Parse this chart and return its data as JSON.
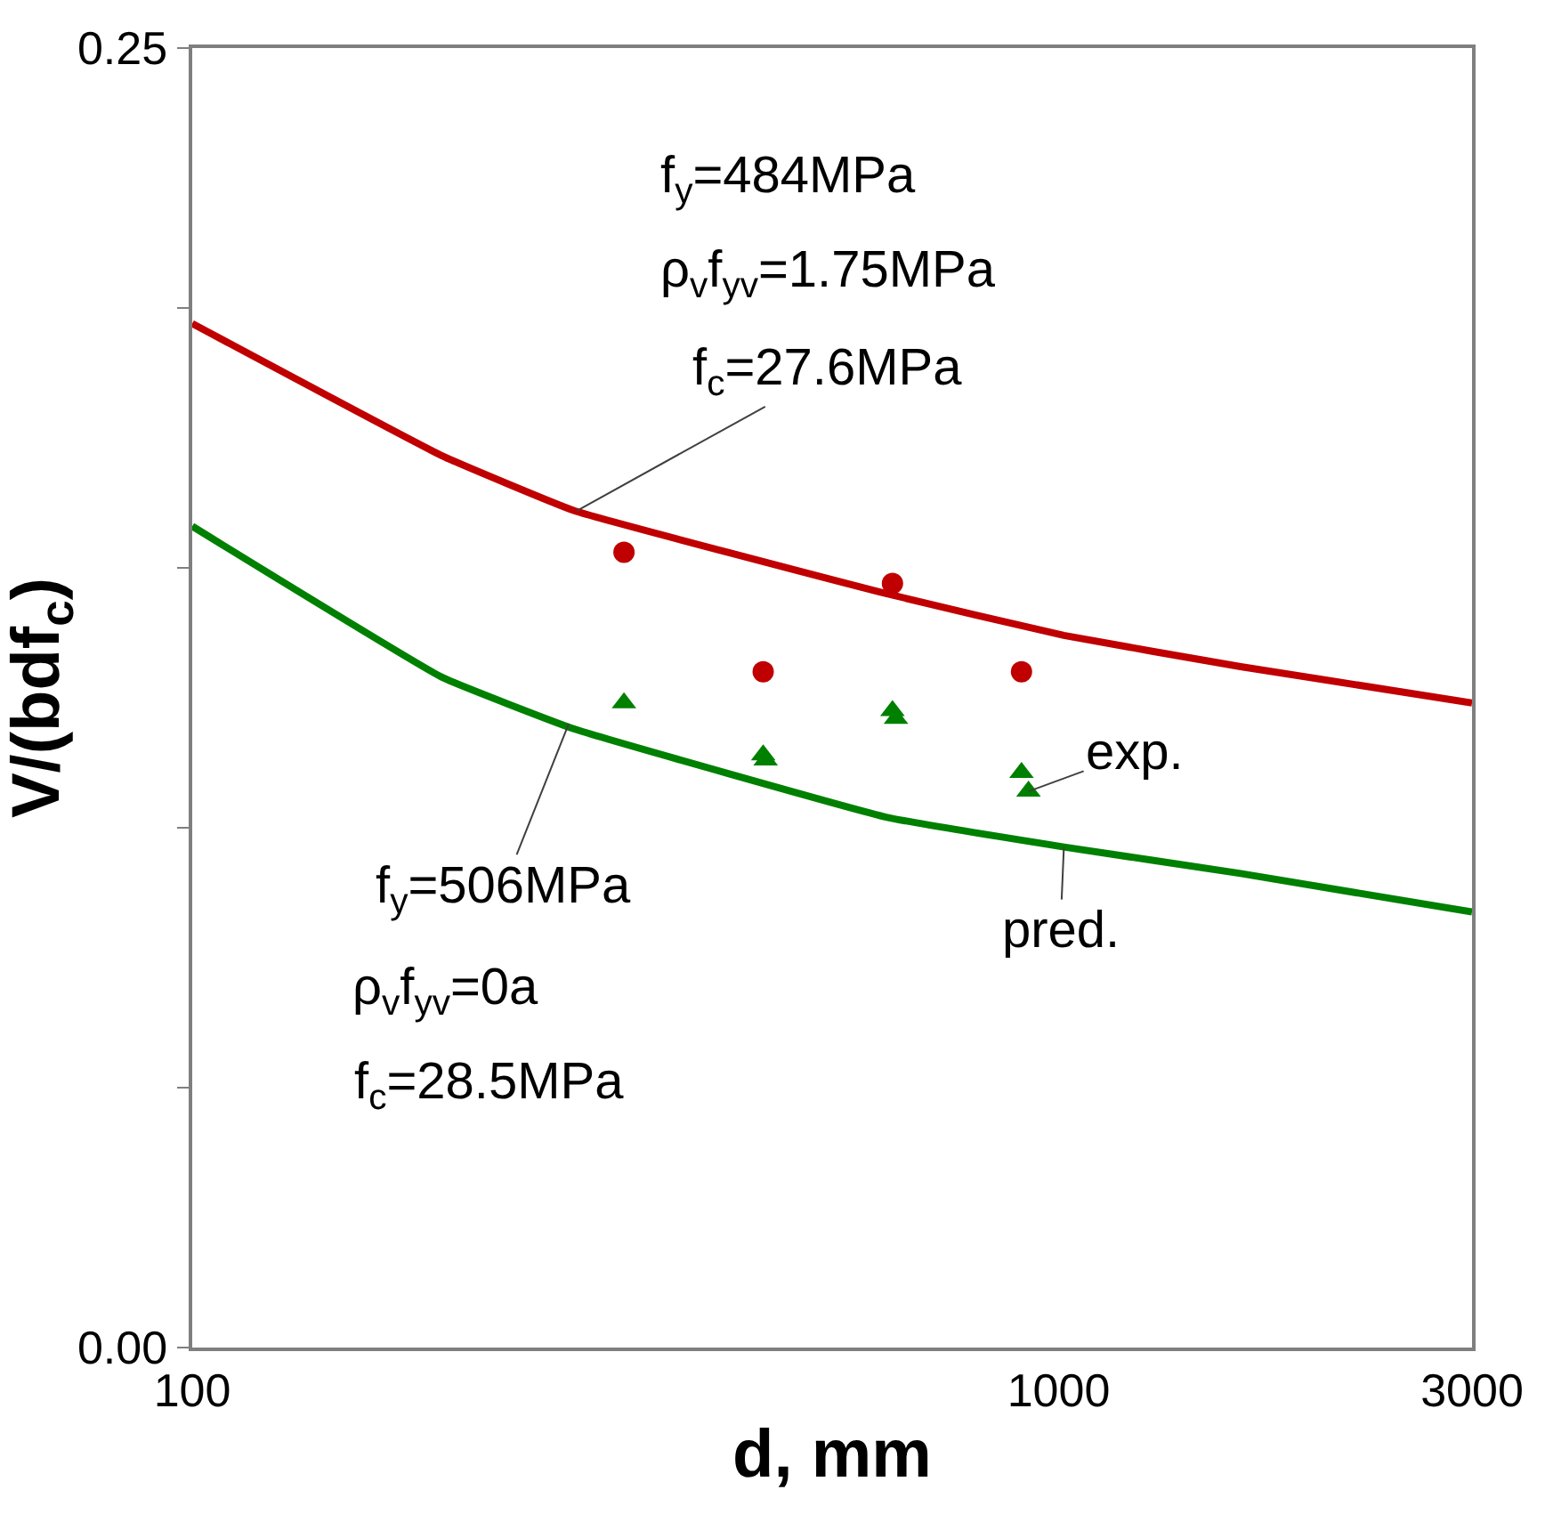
{
  "chart_data": {
    "type": "line",
    "xlabel": "d, mm",
    "ylabel": "V/(bdf$_{c}$)",
    "log": "x",
    "xlim": [
      100,
      3000
    ],
    "xticks": [
      100,
      1000,
      3000
    ],
    "ylim": [
      0,
      0.25
    ],
    "yticks": [
      {
        "value": 0,
        "label": "0.00"
      },
      {
        "value": 0.05,
        "label": null
      },
      {
        "value": 0.1,
        "label": null
      },
      {
        "value": 0.15,
        "label": null
      },
      {
        "value": 0.2,
        "label": null
      },
      {
        "value": 0.25,
        "label": "0.25"
      }
    ],
    "series": [
      {
        "color": "#c00000",
        "marker": "none",
        "x": [
          100,
          194,
          276,
          634,
          1014,
          1622,
          3000
        ],
        "values": [
          0.197,
          0.1716,
          0.161,
          0.145,
          0.137,
          0.131,
          0.124
        ]
      },
      {
        "color": "#008000",
        "marker": "none",
        "x": [
          100,
          194,
          276,
          634,
          1014,
          1622,
          3000
        ],
        "values": [
          0.158,
          0.129,
          0.119,
          0.102,
          0.0963,
          0.0912,
          0.0838
        ]
      },
      {
        "type": "scatter",
        "color": "#c00000",
        "marker": "circle",
        "x": [
          315,
          456,
          643,
          906
        ],
        "values": [
          0.153,
          0.13,
          0.147,
          0.13
        ]
      },
      {
        "type": "scatter",
        "color": "#008000",
        "marker": "triangle",
        "x": [
          315,
          456,
          459,
          643,
          649,
          906,
          923
        ],
        "values": [
          0.124,
          0.114,
          0.113,
          0.1225,
          0.121,
          0.1106,
          0.107
        ]
      }
    ],
    "annotations": [
      "f$_{y}$=484MPa",
      "ρ$_{v}$f$_{yv}$=1.75MPa",
      {
        "text": "f$_{c}$=27.6MPa",
        "x": 278,
        "y": 0.161
      },
      {
        "text": "f$_{y}$=506MPa",
        "x": 272,
        "y": 0.12
      },
      "ρ$_{v}$f$_{yv}$=0a",
      "f$_{c}$=28.5MPa",
      {
        "text": "exp.",
        "x": 923,
        "y": 0.107
      },
      {
        "text": "pred.",
        "x": 1014,
        "y": 0.0963
      }
    ]
  }
}
